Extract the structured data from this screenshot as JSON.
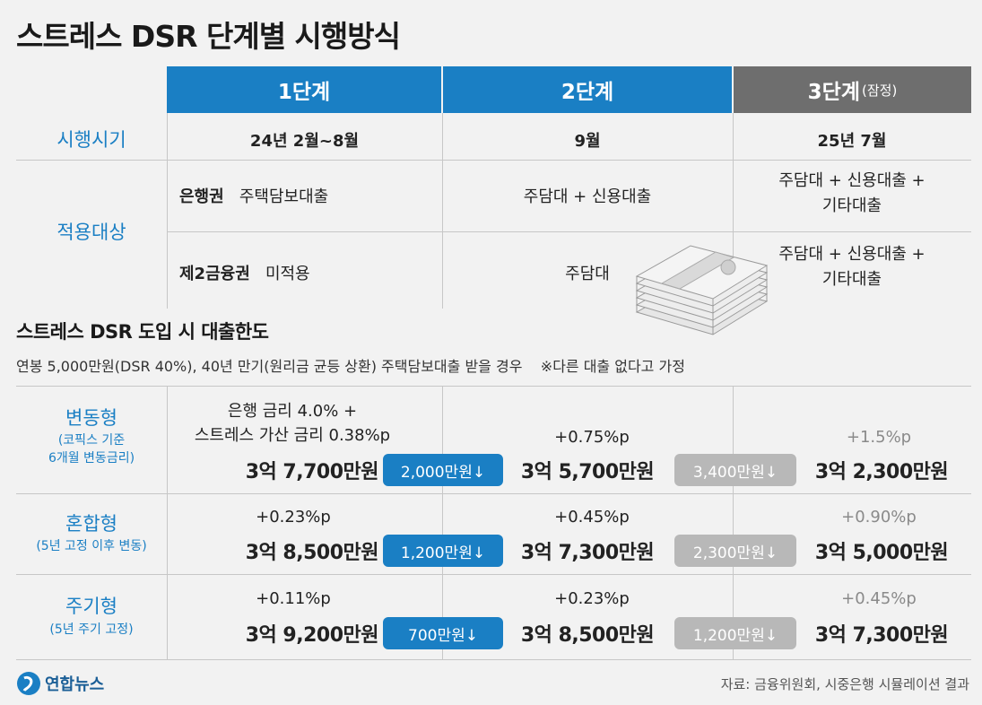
{
  "title": "스트레스 DSR 단계별 시행방식",
  "stages": [
    {
      "label": "1단계",
      "note": ""
    },
    {
      "label": "2단계",
      "note": ""
    },
    {
      "label": "3단계",
      "note": "(잠정)"
    }
  ],
  "schedule": {
    "label": "시행시기",
    "values": [
      "24년 2월~8월",
      "9월",
      "25년 7월"
    ]
  },
  "scope": {
    "label": "적용대상",
    "bank": {
      "name": "은행권",
      "stage1": "주택담보대출",
      "stage2": "주담대 + 신용대출",
      "stage3_line1": "주담대 + 신용대출 +",
      "stage3_line2": "기타대출"
    },
    "secondary": {
      "name": "제2금융권",
      "stage1": "미적용",
      "stage2": "주담대",
      "stage3_line1": "주담대 + 신용대출 +",
      "stage3_line2": "기타대출"
    }
  },
  "limit_section": {
    "title": "스트레스 DSR 도입 시 대출한도",
    "condition": "연봉 5,000만원(DSR 40%), 40년 만기(원리금 균등 상환) 주택담보대출 받을 경우",
    "note": "※다른 대출 없다고 가정"
  },
  "loan_types": [
    {
      "name": "변동형",
      "desc1": "(코픽스 기준",
      "desc2": "6개월 변동금리)",
      "stage1_rate1": "은행 금리 4.0% +",
      "stage1_rate2": "스트레스 가산 금리 0.38%p",
      "stage1_amount": "3억 7,700만원",
      "cut1": "2,000만원↓",
      "stage2_rate": "+0.75%p",
      "stage2_amount": "3억 5,700만원",
      "cut2": "3,400만원↓",
      "stage3_rate": "+1.5%p",
      "stage3_amount": "3억 2,300만원"
    },
    {
      "name": "혼합형",
      "desc1": "(5년 고정 이후 변동)",
      "desc2": "",
      "stage1_rate1": "+0.23%p",
      "stage1_amount": "3억 8,500만원",
      "cut1": "1,200만원↓",
      "stage2_rate": "+0.45%p",
      "stage2_amount": "3억 7,300만원",
      "cut2": "2,300만원↓",
      "stage3_rate": "+0.90%p",
      "stage3_amount": "3억 5,000만원"
    },
    {
      "name": "주기형",
      "desc1": "(5년 주기 고정)",
      "desc2": "",
      "stage1_rate1": "+0.11%p",
      "stage1_amount": "3억 9,200만원",
      "cut1": "700만원↓",
      "stage2_rate": "+0.23%p",
      "stage2_amount": "3억 8,500만원",
      "cut2": "1,200만원↓",
      "stage3_rate": "+0.45%p",
      "stage3_amount": "3억 7,300만원"
    }
  ],
  "footer": {
    "logo_text": "연합뉴스",
    "source": "자료: 금융위원회, 시중은행 시뮬레이션 결과"
  },
  "colors": {
    "accent_blue": "#1a7fc4",
    "stage3_gray": "#6e6e6e",
    "pill_gray": "#b8b8b8"
  },
  "illustration": "money-stack-icon"
}
